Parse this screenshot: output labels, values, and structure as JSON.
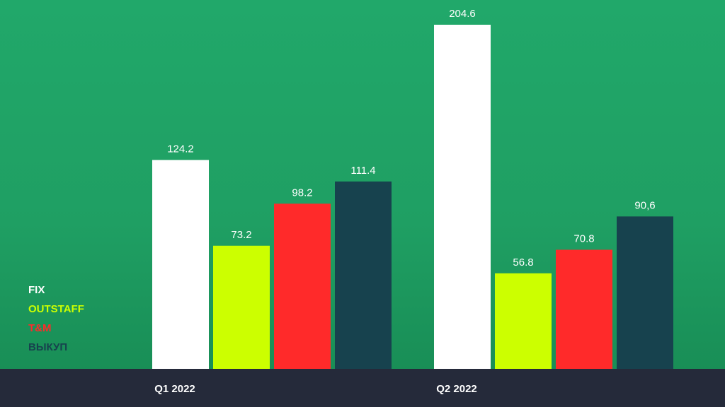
{
  "chart_data": {
    "type": "bar",
    "categories": [
      "Q1 2022",
      "Q2 2022"
    ],
    "series": [
      {
        "name": "FIX",
        "color": "#ffffff",
        "values": [
          124.2,
          204.6
        ],
        "labels": [
          "124.2",
          "204.6"
        ]
      },
      {
        "name": "OUTSTAFF",
        "color": "#ccff00",
        "values": [
          73.2,
          56.8
        ],
        "labels": [
          "73.2",
          "56.8"
        ]
      },
      {
        "name": "T&M",
        "color": "#ff2a2a",
        "values": [
          98.2,
          70.8
        ],
        "labels": [
          "98.2",
          "70.8"
        ]
      },
      {
        "name": "ВЫКУП",
        "color": "#17424e",
        "values": [
          111.4,
          90.6
        ],
        "labels": [
          "111.4",
          "90,6"
        ]
      }
    ],
    "ylim": [
      0,
      204.6
    ],
    "legend_position": "bottom-left",
    "axis_color": "#252a3a"
  }
}
